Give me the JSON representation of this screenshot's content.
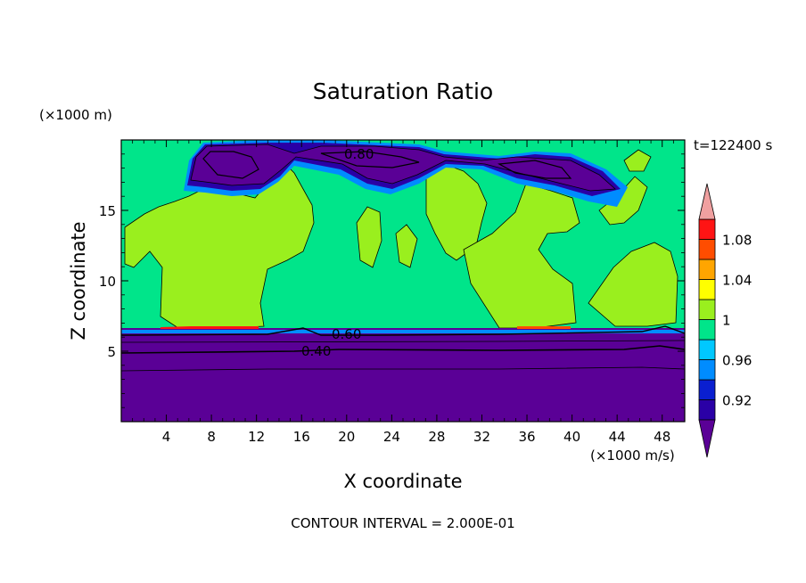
{
  "chart_data": {
    "type": "heatmap",
    "title": "Saturation Ratio",
    "xlabel": "X coordinate",
    "ylabel": "Z coordinate",
    "x_unit": "(×1000 m/s)",
    "y_unit": "(×1000 m)",
    "time_label": "t=122400 s",
    "footnote": "CONTOUR INTERVAL = 2.000E-01",
    "xlim": [
      0,
      50
    ],
    "ylim": [
      0,
      20
    ],
    "x_ticks": [
      "4",
      "8",
      "12",
      "16",
      "20",
      "24",
      "28",
      "32",
      "36",
      "40",
      "44",
      "48"
    ],
    "y_ticks": [
      "5",
      "10",
      "15"
    ],
    "contour_labels": [
      "0.80",
      "0.60",
      "0.40"
    ],
    "colorbar": {
      "labels": [
        "1.08",
        "1.04",
        "1",
        "0.96",
        "0.92"
      ],
      "levels": [
        0.9,
        0.92,
        0.94,
        0.96,
        0.98,
        1.0,
        1.02,
        1.04,
        1.06,
        1.08,
        1.1
      ],
      "colors": [
        "#5a0096",
        "#2a00a6",
        "#0a1fd0",
        "#008cff",
        "#00c8ff",
        "#00e58a",
        "#9aef1e",
        "#ffff00",
        "#ffa500",
        "#ff4d00",
        "#ff1414",
        "#f0a0a0"
      ]
    },
    "regions": {
      "lower_layer_top_z": 6.3,
      "upper_dry_band_z": [
        17.5,
        20
      ],
      "dominant_value_upper": 0.99,
      "dominant_value_lower": 0.9
    }
  }
}
